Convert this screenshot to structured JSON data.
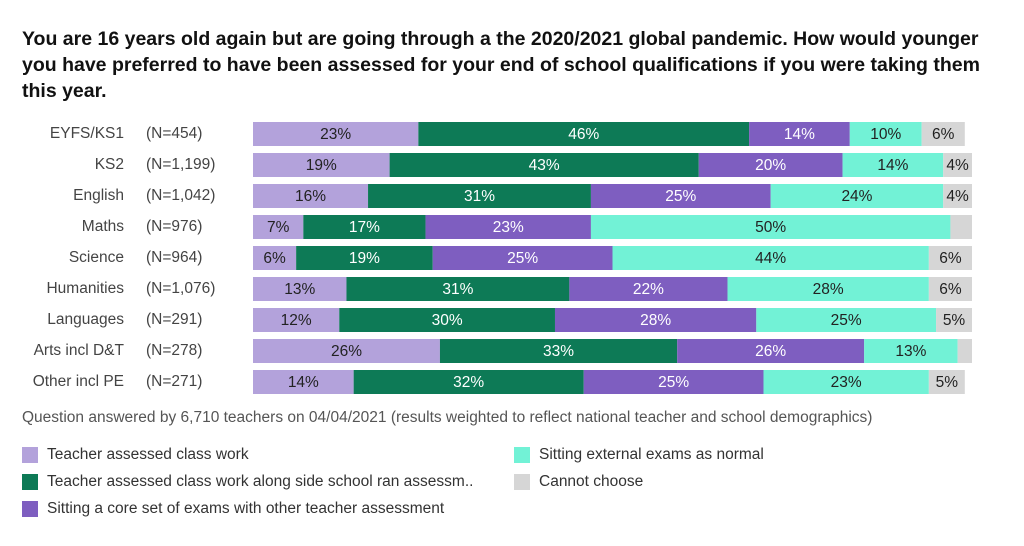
{
  "chart_data": {
    "type": "stacked-bar-horizontal",
    "title": "You are 16 years old again but are going through a the 2020/2021 global pandemic. How would younger you have preferred to have been assessed for your end of school qualifications if you were taking them this year.",
    "categories": [
      "EYFS/KS1",
      "KS2",
      "English",
      "Maths",
      "Science",
      "Humanities",
      "Languages",
      "Arts incl D&T",
      "Other incl PE"
    ],
    "n_labels": [
      "(N=454)",
      "(N=1,199)",
      "(N=1,042)",
      "(N=976)",
      "(N=964)",
      "(N=1,076)",
      "(N=291)",
      "(N=278)",
      "(N=271)"
    ],
    "xlim": [
      0,
      100
    ],
    "series": [
      {
        "name": "Teacher assessed class work",
        "color": "#b3a2db",
        "label_color": "#222222",
        "values": [
          23,
          19,
          16,
          7,
          6,
          13,
          12,
          26,
          14
        ],
        "value_labels": [
          "23%",
          "19%",
          "16%",
          "7%",
          "6%",
          "13%",
          "12%",
          "26%",
          "14%"
        ]
      },
      {
        "name": "Teacher assessed class work along side school ran assessm..",
        "color": "#0d7a56",
        "label_color": "#ffffff",
        "values": [
          46,
          43,
          31,
          17,
          19,
          31,
          30,
          33,
          32
        ],
        "value_labels": [
          "46%",
          "43%",
          "31%",
          "17%",
          "19%",
          "31%",
          "30%",
          "33%",
          "32%"
        ]
      },
      {
        "name": "Sitting a core set of exams with other teacher assessment",
        "color": "#7e5ec0",
        "label_color": "#ffffff",
        "values": [
          14,
          20,
          25,
          23,
          25,
          22,
          28,
          26,
          25
        ],
        "value_labels": [
          "14%",
          "20%",
          "25%",
          "23%",
          "25%",
          "22%",
          "28%",
          "26%",
          "25%"
        ]
      },
      {
        "name": "Sitting external exams as normal",
        "color": "#72f2d6",
        "label_color": "#222222",
        "values": [
          10,
          14,
          24,
          50,
          44,
          28,
          25,
          13,
          23
        ],
        "value_labels": [
          "10%",
          "14%",
          "24%",
          "50%",
          "44%",
          "28%",
          "25%",
          "13%",
          "23%"
        ]
      },
      {
        "name": "Cannot choose",
        "color": "#d6d6d6",
        "label_color": "#222222",
        "values": [
          6,
          4,
          4,
          3,
          6,
          6,
          5,
          2,
          5
        ],
        "value_labels": [
          "6%",
          "4%",
          "4%",
          null,
          "6%",
          "6%",
          "5%",
          null,
          "5%"
        ]
      }
    ],
    "footnote": "Question answered by 6,710 teachers on 04/04/2021 (results weighted to reflect national teacher and school demographics)"
  }
}
